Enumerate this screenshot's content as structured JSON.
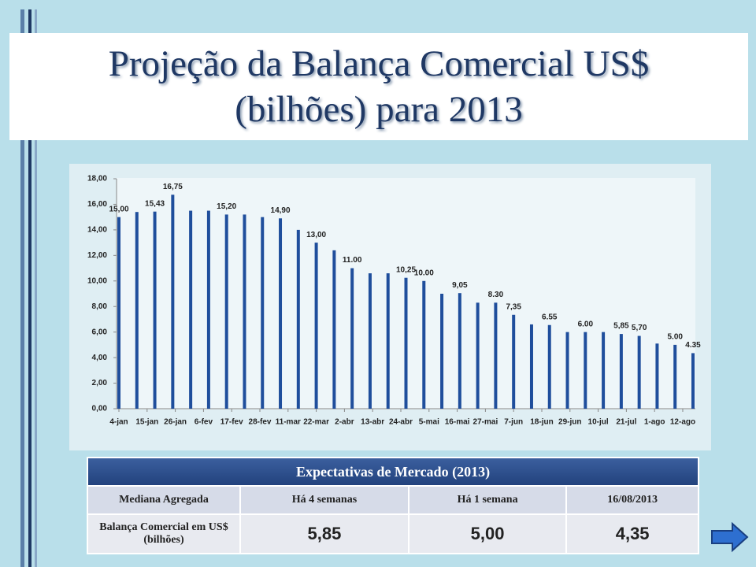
{
  "slide": {
    "title": [
      "Projeção da Balança Comercial US$",
      "(bilhões) para 2013"
    ]
  },
  "chart_data": {
    "type": "bar",
    "color": "#1f4e9c",
    "x_labels": [
      "4-jan",
      "15-jan",
      "26-jan",
      "6-fev",
      "17-fev",
      "28-fev",
      "11-mar",
      "22-mar",
      "2-abr",
      "13-abr",
      "24-abr",
      "5-mai",
      "16-mai",
      "27-mai",
      "7-jun",
      "18-jun",
      "29-jun",
      "10-jul",
      "21-jul",
      "1-ago",
      "12-ago"
    ],
    "values": [
      15.0,
      15.4,
      15.43,
      16.75,
      15.5,
      15.5,
      15.2,
      15.2,
      15.0,
      14.9,
      14.0,
      13.0,
      12.4,
      11.0,
      10.6,
      10.6,
      10.25,
      10.0,
      9.0,
      9.05,
      8.3,
      8.3,
      7.35,
      6.6,
      6.55,
      6.0,
      6.0,
      6.0,
      5.85,
      5.7,
      5.1,
      5.0,
      4.35
    ],
    "value_labels": [
      "15,00",
      null,
      "15,43",
      "16,75",
      null,
      null,
      "15,20",
      null,
      null,
      "14,90",
      null,
      "13,00",
      null,
      "11.00",
      null,
      null,
      "10,25",
      "10.00",
      null,
      "9,05",
      null,
      "8.30",
      "7,35",
      null,
      "6.55",
      null,
      "6.00",
      null,
      "5,85",
      "5,70",
      null,
      "5.00",
      "4.35"
    ],
    "ylim": [
      0,
      18
    ],
    "yticks": [
      {
        "value": 0,
        "label": "0,00"
      },
      {
        "value": 2,
        "label": "2,00"
      },
      {
        "value": 4,
        "label": "4,00"
      },
      {
        "value": 6,
        "label": "6,00"
      },
      {
        "value": 8,
        "label": "8,00"
      },
      {
        "value": 10,
        "label": "10,00"
      },
      {
        "value": 12,
        "label": "12,00"
      },
      {
        "value": 14,
        "label": "14,00"
      },
      {
        "value": 16,
        "label": "16,00"
      },
      {
        "value": 18,
        "label": "18,00"
      }
    ]
  },
  "table": {
    "title": "Expectativas de Mercado (2013)",
    "header": [
      "Mediana Agregada",
      "Há 4 semanas",
      "Há 1 semana",
      "16/08/2013"
    ],
    "rows": [
      [
        "Balança Comercial em US$ (bilhões)",
        "5,85",
        "5,00",
        "4,35"
      ]
    ]
  }
}
